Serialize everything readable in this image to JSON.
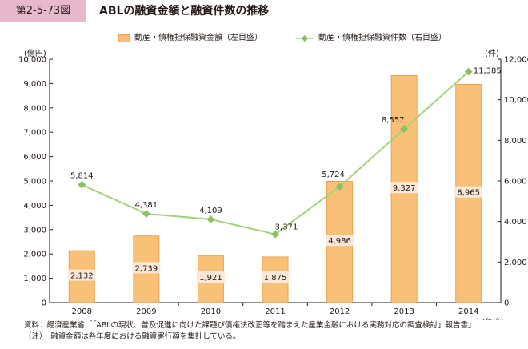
{
  "figure": {
    "label": "第2-5-73図",
    "title": "ABLの融資金額と融資件数の推移"
  },
  "legend": {
    "bar_label": "動産・債権担保融資金額（左目盛）",
    "line_label": "動産・債権担保融資件数（右目盛）"
  },
  "units": {
    "left": "(億円)",
    "right": "(件)",
    "x": "(年度)"
  },
  "notes": [
    "資料：経済産業省「「ABLの現状、普及促進に向けた課題び債権法改正等を踏まえた産業金融における実務対応の調査検討」報告書」",
    "（注）　融資金額は各年度における融資実行額を集計している。"
  ],
  "colors": {
    "bar_fill": "#f9c178",
    "bar_stroke": "#eba24e",
    "line": "#a5d17a",
    "marker": "#8cc063",
    "label_bg": "#fbe8d8",
    "figure_label_bg": "#e8b8cc"
  },
  "chart_data": {
    "type": "bar",
    "categories": [
      "2008",
      "2009",
      "2010",
      "2011",
      "2012",
      "2013",
      "2014"
    ],
    "series": [
      {
        "name": "動産・債権担保融資金額（左目盛）",
        "type": "bar",
        "axis": "left",
        "values": [
          2132,
          2739,
          1921,
          1875,
          4986,
          9327,
          8965
        ],
        "labels": [
          "2,132",
          "2,739",
          "1,921",
          "1,875",
          "4,986",
          "9,327",
          "8,965"
        ]
      },
      {
        "name": "動産・債権担保融資件数（右目盛）",
        "type": "line",
        "axis": "right",
        "values": [
          5814,
          4381,
          4109,
          3371,
          5724,
          8557,
          11385
        ],
        "labels": [
          "5,814",
          "4,381",
          "4,109",
          "3,371",
          "5,724",
          "8,557",
          "11,385"
        ]
      }
    ],
    "y_left": {
      "range": [
        0,
        10000
      ],
      "ticks": [
        0,
        1000,
        2000,
        3000,
        4000,
        5000,
        6000,
        7000,
        8000,
        9000,
        10000
      ],
      "tick_labels": [
        "0",
        "1,000",
        "2,000",
        "3,000",
        "4,000",
        "5,000",
        "6,000",
        "7,000",
        "8,000",
        "9,000",
        "10,000"
      ]
    },
    "y_right": {
      "range": [
        0,
        12000
      ],
      "ticks": [
        0,
        2000,
        4000,
        6000,
        8000,
        10000,
        12000
      ],
      "tick_labels": [
        "0",
        "2,000",
        "4,000",
        "6,000",
        "8,000",
        "10,000",
        "12,000"
      ]
    },
    "grid": false,
    "legend_position": "top"
  }
}
